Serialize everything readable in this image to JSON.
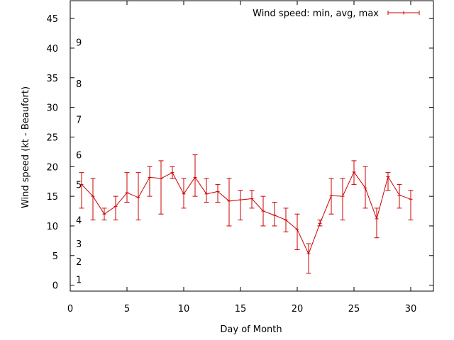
{
  "chart_data": {
    "type": "line",
    "xlabel": "Day of Month",
    "ylabel": "Wind speed (kt - Beaufort)",
    "xlim": [
      0,
      32
    ],
    "ylim": [
      -1,
      48
    ],
    "xticks": [
      0,
      5,
      10,
      15,
      20,
      25,
      30
    ],
    "yticks": [
      0,
      5,
      10,
      15,
      20,
      25,
      30,
      35,
      40,
      45
    ],
    "grid": false,
    "legend_position": "top-right",
    "series": [
      {
        "name": "Wind speed: min, avg, max",
        "color": "#cc0000",
        "x": [
          1,
          2,
          3,
          4,
          5,
          6,
          7,
          8,
          9,
          10,
          11,
          12,
          13,
          14,
          15,
          16,
          17,
          18,
          19,
          20,
          21,
          22,
          23,
          24,
          25,
          26,
          27,
          28,
          29,
          30
        ],
        "y": [
          17,
          15,
          12,
          13.3,
          15.6,
          14.8,
          18.2,
          18,
          19,
          15.4,
          18.2,
          15.4,
          15.8,
          14.2,
          14.4,
          14.6,
          12.5,
          11.8,
          11,
          9.4,
          5.3,
          10.4,
          15.1,
          15,
          19.1,
          16.4,
          11.2,
          18.3,
          15.2,
          14.5
        ],
        "min": [
          13,
          11,
          11,
          11,
          14,
          11,
          15,
          12,
          18,
          13,
          15,
          14,
          14,
          10,
          11,
          13,
          10,
          10,
          9,
          6,
          2,
          10,
          12,
          11,
          17,
          13,
          8,
          16,
          13,
          11
        ],
        "max": [
          19,
          18,
          13,
          15,
          19,
          19,
          20,
          21,
          20,
          18,
          22,
          18,
          17,
          18,
          16,
          16,
          15,
          14,
          13,
          12,
          7,
          11,
          18,
          18,
          21,
          20,
          13,
          19,
          17,
          16
        ]
      }
    ],
    "annotations": [
      {
        "text": "1",
        "y": 1
      },
      {
        "text": "2",
        "y": 4
      },
      {
        "text": "3",
        "y": 7
      },
      {
        "text": "4",
        "y": 11
      },
      {
        "text": "5",
        "y": 17
      },
      {
        "text": "6",
        "y": 22
      },
      {
        "text": "7",
        "y": 28
      },
      {
        "text": "8",
        "y": 34
      },
      {
        "text": "9",
        "y": 41
      }
    ]
  }
}
